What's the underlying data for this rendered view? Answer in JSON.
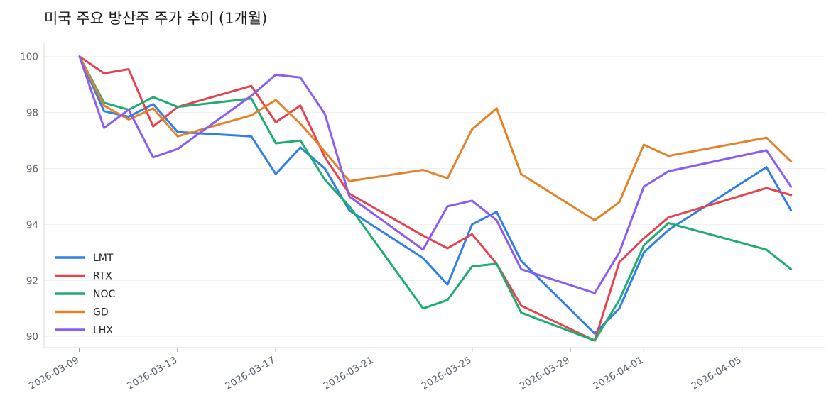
{
  "chart_data": {
    "type": "line",
    "title": "미국 주요 방산주 주가 추이 (1개월)",
    "xlabel": "",
    "ylabel": "",
    "x": [
      "2026-03-09",
      "2026-03-10",
      "2026-03-11",
      "2026-03-12",
      "2026-03-13",
      "2026-03-16",
      "2026-03-17",
      "2026-03-18",
      "2026-03-19",
      "2026-03-20",
      "2026-03-23",
      "2026-03-24",
      "2026-03-25",
      "2026-03-26",
      "2026-03-27",
      "2026-03-30",
      "2026-03-31",
      "2026-04-01",
      "2026-04-02",
      "2026-04-06",
      "2026-04-07"
    ],
    "xticks": [
      "2026-03-09",
      "2026-03-13",
      "2026-03-17",
      "2026-03-21",
      "2026-03-25",
      "2026-03-29",
      "2026-04-01",
      "2026-04-05"
    ],
    "yticks": [
      90,
      92,
      94,
      96,
      98,
      100
    ],
    "ylim": [
      89.6,
      100.5
    ],
    "grid": true,
    "legend_position": "center-left",
    "series": [
      {
        "name": "LMT",
        "color": "#2f7fe6",
        "values": [
          100,
          98.05,
          97.85,
          98.3,
          97.3,
          97.15,
          95.8,
          96.75,
          96.0,
          94.5,
          92.8,
          91.85,
          94.0,
          94.45,
          92.7,
          90.1,
          91.0,
          93.0,
          93.8,
          96.05,
          94.5
        ]
      },
      {
        "name": "RTX",
        "color": "#e5444f",
        "values": [
          100,
          99.4,
          99.55,
          97.5,
          98.2,
          98.95,
          97.65,
          98.25,
          96.4,
          95.1,
          93.6,
          93.15,
          93.65,
          92.6,
          91.1,
          89.85,
          92.65,
          93.5,
          94.25,
          95.3,
          95.05
        ]
      },
      {
        "name": "NOC",
        "color": "#1fac73",
        "values": [
          100,
          98.35,
          98.1,
          98.55,
          98.2,
          98.5,
          96.9,
          97.0,
          95.6,
          94.65,
          91.0,
          91.3,
          92.5,
          92.6,
          90.85,
          89.85,
          91.3,
          93.25,
          94.05,
          93.1,
          92.4
        ]
      },
      {
        "name": "GD",
        "color": "#e2822b",
        "values": [
          100,
          98.25,
          97.75,
          98.15,
          97.15,
          97.9,
          98.45,
          97.6,
          96.6,
          95.55,
          95.95,
          95.65,
          97.4,
          98.15,
          95.8,
          94.15,
          94.8,
          96.85,
          96.45,
          97.1,
          96.25
        ]
      },
      {
        "name": "LHX",
        "color": "#8b5cf0",
        "values": [
          100,
          97.45,
          98.1,
          96.4,
          96.7,
          98.6,
          99.35,
          99.25,
          97.95,
          95.0,
          93.1,
          94.65,
          94.85,
          94.15,
          92.4,
          91.55,
          93.0,
          95.35,
          95.9,
          96.65,
          95.35
        ]
      }
    ]
  }
}
